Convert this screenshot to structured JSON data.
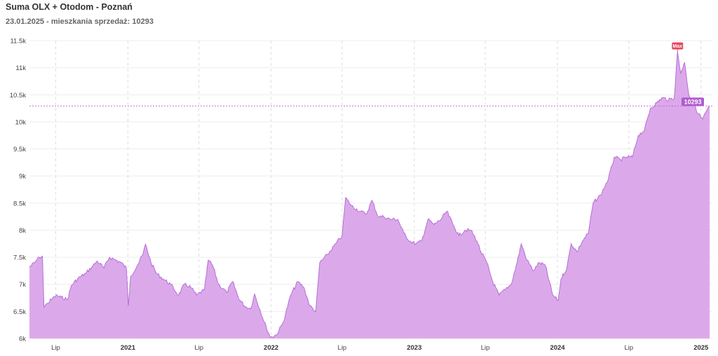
{
  "chart_data": {
    "type": "area",
    "title": "Suma OLX + Otodom - Poznań",
    "subtitle": "23.01.2025 - mieszkania sprzedaż: 10293",
    "colors": {
      "fill": "#dba9ea",
      "line": "#b56fd6",
      "current_line": "#c56ad8",
      "max_badge": "#e8455f",
      "current_badge": "#b05ad0"
    },
    "y_ticks": [
      "6k",
      "6.5k",
      "7k",
      "7.5k",
      "8k",
      "8.5k",
      "9k",
      "9.5k",
      "10k",
      "10.5k",
      "11k",
      "11.5k"
    ],
    "ylim": [
      6000,
      11500
    ],
    "x_ticks": [
      {
        "date": "2020-07-01",
        "label": "Lip",
        "major": false
      },
      {
        "date": "2021-01-01",
        "label": "2021",
        "major": true
      },
      {
        "date": "2021-07-01",
        "label": "Lip",
        "major": false
      },
      {
        "date": "2022-01-01",
        "label": "2022",
        "major": true
      },
      {
        "date": "2022-07-01",
        "label": "Lip",
        "major": false
      },
      {
        "date": "2023-01-01",
        "label": "2023",
        "major": true
      },
      {
        "date": "2023-07-01",
        "label": "Lip",
        "major": false
      },
      {
        "date": "2024-01-01",
        "label": "2024",
        "major": true
      },
      {
        "date": "2024-07-01",
        "label": "Lip",
        "major": false
      },
      {
        "date": "2025-01-01",
        "label": "2025",
        "major": true
      }
    ],
    "xlim": [
      "2020-04-25",
      "2025-01-30"
    ],
    "grid": true,
    "series": [
      {
        "points": [
          [
            "2020-04-25",
            7320
          ],
          [
            "2020-05-08",
            7400
          ],
          [
            "2020-05-20",
            7500
          ],
          [
            "2020-05-28",
            7520
          ],
          [
            "2020-06-01",
            6580
          ],
          [
            "2020-06-10",
            6650
          ],
          [
            "2020-06-20",
            6720
          ],
          [
            "2020-07-01",
            6790
          ],
          [
            "2020-07-15",
            6760
          ],
          [
            "2020-07-31",
            6720
          ],
          [
            "2020-08-10",
            6980
          ],
          [
            "2020-08-25",
            7100
          ],
          [
            "2020-09-15",
            7200
          ],
          [
            "2020-10-01",
            7320
          ],
          [
            "2020-10-15",
            7430
          ],
          [
            "2020-11-01",
            7300
          ],
          [
            "2020-11-15",
            7500
          ],
          [
            "2020-12-01",
            7450
          ],
          [
            "2020-12-15",
            7400
          ],
          [
            "2020-12-28",
            7300
          ],
          [
            "2021-01-02",
            6600
          ],
          [
            "2021-01-08",
            7150
          ],
          [
            "2021-01-25",
            7350
          ],
          [
            "2021-02-08",
            7550
          ],
          [
            "2021-02-15",
            7740
          ],
          [
            "2021-03-01",
            7400
          ],
          [
            "2021-03-15",
            7200
          ],
          [
            "2021-04-01",
            7100
          ],
          [
            "2021-04-20",
            7000
          ],
          [
            "2021-05-10",
            6800
          ],
          [
            "2021-05-25",
            7000
          ],
          [
            "2021-06-10",
            6950
          ],
          [
            "2021-06-25",
            6800
          ],
          [
            "2021-07-15",
            6900
          ],
          [
            "2021-07-25",
            7450
          ],
          [
            "2021-08-05",
            7350
          ],
          [
            "2021-08-20",
            7000
          ],
          [
            "2021-09-10",
            6850
          ],
          [
            "2021-09-25",
            7050
          ],
          [
            "2021-10-10",
            6750
          ],
          [
            "2021-10-25",
            6600
          ],
          [
            "2021-11-10",
            6550
          ],
          [
            "2021-11-20",
            6820
          ],
          [
            "2021-12-05",
            6500
          ],
          [
            "2021-12-20",
            6200
          ],
          [
            "2021-12-31",
            6020
          ],
          [
            "2022-01-15",
            6070
          ],
          [
            "2022-02-01",
            6300
          ],
          [
            "2022-02-20",
            6800
          ],
          [
            "2022-03-10",
            7050
          ],
          [
            "2022-03-25",
            6950
          ],
          [
            "2022-04-10",
            6600
          ],
          [
            "2022-04-25",
            6500
          ],
          [
            "2022-05-05",
            7400
          ],
          [
            "2022-05-25",
            7550
          ],
          [
            "2022-06-15",
            7750
          ],
          [
            "2022-07-01",
            7900
          ],
          [
            "2022-07-10",
            8600
          ],
          [
            "2022-07-25",
            8450
          ],
          [
            "2022-08-15",
            8350
          ],
          [
            "2022-09-01",
            8300
          ],
          [
            "2022-09-15",
            8550
          ],
          [
            "2022-10-01",
            8250
          ],
          [
            "2022-10-15",
            8250
          ],
          [
            "2022-11-01",
            8200
          ],
          [
            "2022-11-20",
            8200
          ],
          [
            "2022-12-05",
            7950
          ],
          [
            "2022-12-20",
            7800
          ],
          [
            "2023-01-05",
            7750
          ],
          [
            "2023-01-20",
            7800
          ],
          [
            "2023-02-05",
            8200
          ],
          [
            "2023-02-20",
            8100
          ],
          [
            "2023-03-10",
            8200
          ],
          [
            "2023-03-25",
            8350
          ],
          [
            "2023-04-10",
            8100
          ],
          [
            "2023-04-25",
            7900
          ],
          [
            "2023-05-10",
            8000
          ],
          [
            "2023-05-25",
            8000
          ],
          [
            "2023-06-10",
            7800
          ],
          [
            "2023-06-20",
            7600
          ],
          [
            "2023-07-05",
            7400
          ],
          [
            "2023-07-20",
            7050
          ],
          [
            "2023-08-05",
            6800
          ],
          [
            "2023-08-20",
            6900
          ],
          [
            "2023-09-05",
            7000
          ],
          [
            "2023-09-20",
            7400
          ],
          [
            "2023-10-01",
            7750
          ],
          [
            "2023-10-15",
            7450
          ],
          [
            "2023-11-01",
            7250
          ],
          [
            "2023-11-15",
            7400
          ],
          [
            "2023-12-01",
            7350
          ],
          [
            "2023-12-20",
            6800
          ],
          [
            "2024-01-03",
            6700
          ],
          [
            "2024-01-10",
            7100
          ],
          [
            "2024-01-25",
            7300
          ],
          [
            "2024-02-05",
            7750
          ],
          [
            "2024-02-20",
            7600
          ],
          [
            "2024-03-05",
            7800
          ],
          [
            "2024-03-20",
            7950
          ],
          [
            "2024-04-01",
            8500
          ],
          [
            "2024-04-20",
            8650
          ],
          [
            "2024-05-10",
            8950
          ],
          [
            "2024-05-25",
            9350
          ],
          [
            "2024-06-10",
            9300
          ],
          [
            "2024-06-25",
            9350
          ],
          [
            "2024-07-10",
            9350
          ],
          [
            "2024-07-25",
            9750
          ],
          [
            "2024-08-10",
            9850
          ],
          [
            "2024-08-25",
            10250
          ],
          [
            "2024-09-10",
            10350
          ],
          [
            "2024-09-25",
            10450
          ],
          [
            "2024-10-10",
            10400
          ],
          [
            "2024-10-25",
            10450
          ],
          [
            "2024-11-02",
            11300
          ],
          [
            "2024-11-10",
            10900
          ],
          [
            "2024-11-20",
            11100
          ],
          [
            "2024-12-01",
            10500
          ],
          [
            "2024-12-15",
            10300
          ],
          [
            "2024-12-25",
            10150
          ],
          [
            "2025-01-05",
            10050
          ],
          [
            "2025-01-15",
            10200
          ],
          [
            "2025-01-23",
            10293
          ]
        ]
      }
    ],
    "max_marker": {
      "label": "Max",
      "date": "2024-11-02",
      "value": 11300
    },
    "current_marker": {
      "label": "10293",
      "value": 10293
    }
  }
}
